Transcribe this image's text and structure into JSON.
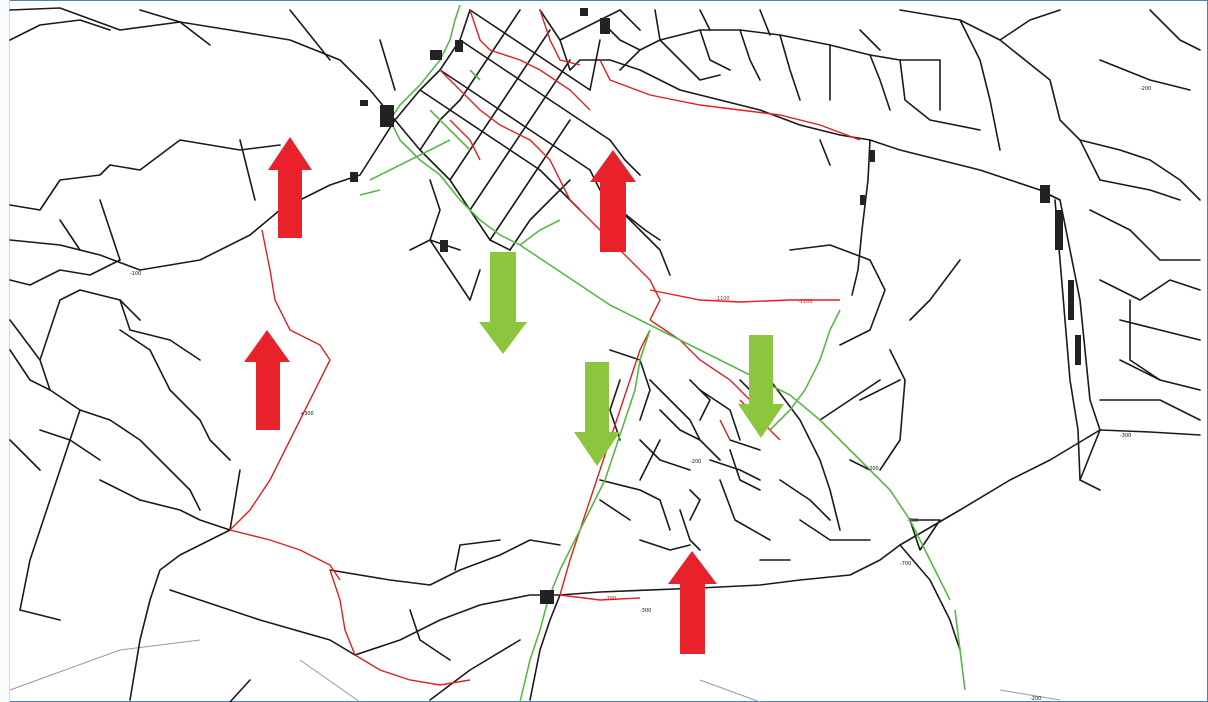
{
  "map": {
    "colors": {
      "background": "#ffffff",
      "network_black": "#1a1a1a",
      "network_red": "#e02020",
      "network_green": "#58b848",
      "arrow_red": "#e8212b",
      "arrow_green": "#8cc63f",
      "frame": "#4a7fc0"
    },
    "arrows": [
      {
        "color": "red",
        "direction": "up"
      },
      {
        "color": "red",
        "direction": "up"
      },
      {
        "color": "red",
        "direction": "up"
      },
      {
        "color": "red",
        "direction": "up"
      },
      {
        "color": "green",
        "direction": "down"
      },
      {
        "color": "green",
        "direction": "down"
      },
      {
        "color": "green",
        "direction": "down"
      }
    ],
    "labels": [
      "-200",
      "-100",
      "-200",
      "-300",
      "-1100",
      "-1100",
      "-700",
      "-200",
      "+300",
      "-300",
      "-700",
      "-700",
      "+200"
    ]
  }
}
